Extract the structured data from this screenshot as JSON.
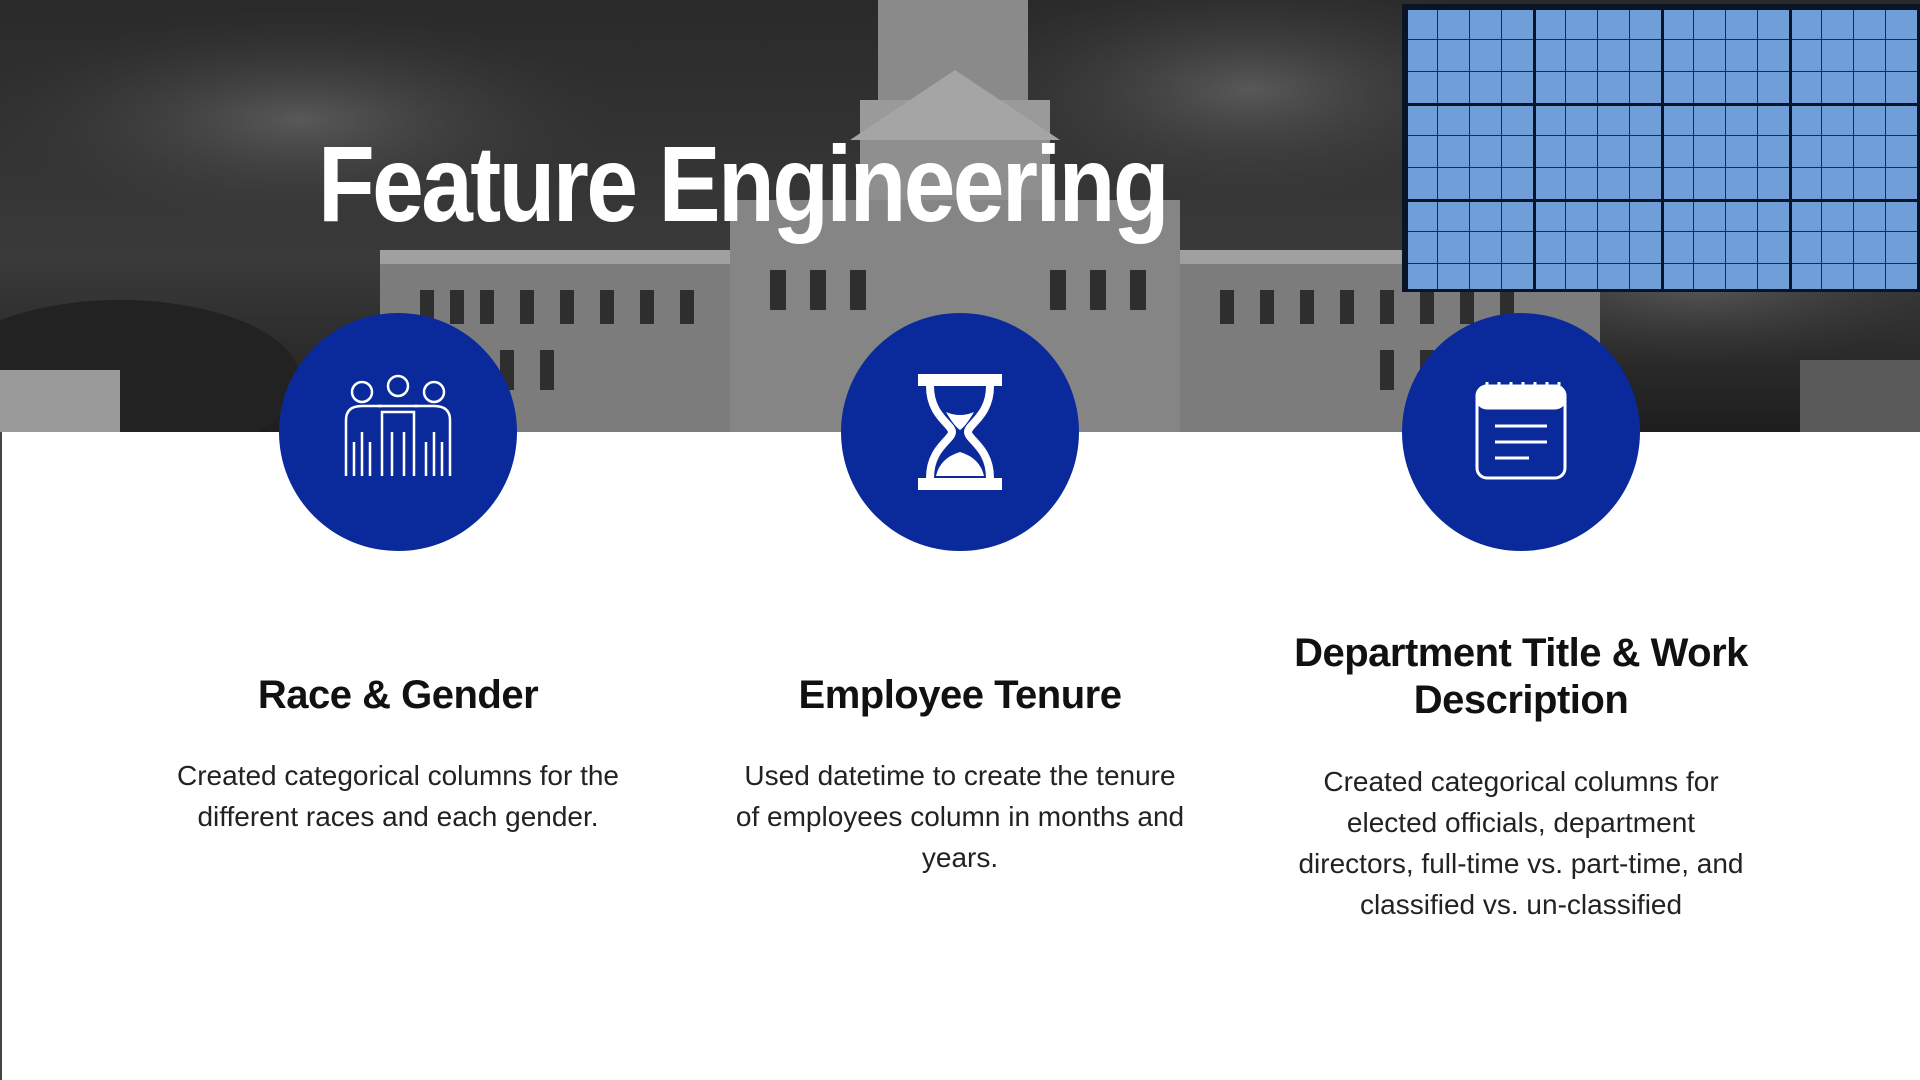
{
  "slide": {
    "title": "Feature Engineering",
    "accent_color": "#0a2a9c",
    "grid_color": "#6f9ed8"
  },
  "features": [
    {
      "icon": "people-group-icon",
      "title": "Race & Gender",
      "description": "Created categorical columns for the different races and each gender."
    },
    {
      "icon": "hourglass-icon",
      "title": "Employee Tenure",
      "description": "Used datetime to create the tenure of employees column in months and years."
    },
    {
      "icon": "calendar-notes-icon",
      "title": "Department Title & Work Description",
      "description": "Created categorical columns for elected officials, department directors, full-time vs. part-time, and classified vs. un-classified"
    }
  ]
}
